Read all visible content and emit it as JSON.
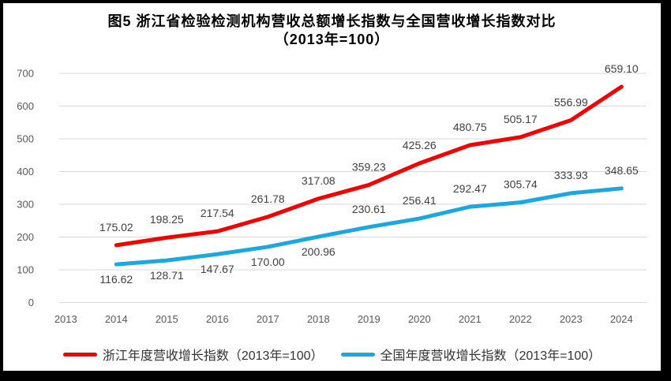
{
  "title": {
    "line1": "图5  浙江省检验检测机构营收总额增长指数与全国营收增长指数对比",
    "line2": "（2013年=100）"
  },
  "chart_data": {
    "type": "line",
    "categories": [
      "2013",
      "2014",
      "2015",
      "2016",
      "2017",
      "2018",
      "2019",
      "2020",
      "2021",
      "2022",
      "2023",
      "2024"
    ],
    "y_ticks": [
      0,
      100,
      200,
      300,
      400,
      500,
      600,
      700
    ],
    "ylim": [
      0,
      700
    ],
    "grid": "horizontal",
    "legend_position": "bottom",
    "series": [
      {
        "name": "浙江年度营收增长指数（2013年=100）",
        "color": "#F40000",
        "start_category_index": 1,
        "values": [
          175.02,
          198.25,
          217.54,
          261.78,
          317.08,
          359.23,
          425.26,
          480.75,
          505.17,
          556.99,
          659.1
        ],
        "labels": [
          "175.02",
          "198.25",
          "217.54",
          "261.78",
          "317.08",
          "359.23",
          "425.26",
          "480.75",
          "505.17",
          "556.99",
          "659.10"
        ],
        "label_sides": [
          "above",
          "above",
          "above",
          "above",
          "above",
          "above",
          "above",
          "above",
          "above",
          "above",
          "above"
        ]
      },
      {
        "name": "全国年度营收增长指数（2013年=100）",
        "color": "#1BA7E0",
        "start_category_index": 1,
        "values": [
          116.62,
          128.71,
          147.67,
          170.0,
          200.96,
          230.61,
          256.41,
          292.47,
          305.74,
          333.93,
          348.65
        ],
        "labels": [
          "116.62",
          "128.71",
          "147.67",
          "170.00",
          "200.96",
          "230.61",
          "256.41",
          "292.47",
          "305.74",
          "333.93",
          "348.65"
        ],
        "label_sides": [
          "below",
          "below",
          "below",
          "below",
          "below",
          "above",
          "above",
          "above",
          "above",
          "above",
          "above"
        ]
      }
    ]
  },
  "style_colors": {
    "gridline": "#D9D9D9",
    "axis_label": "#595959",
    "data_label": "#404040",
    "title_text": "#000000"
  }
}
